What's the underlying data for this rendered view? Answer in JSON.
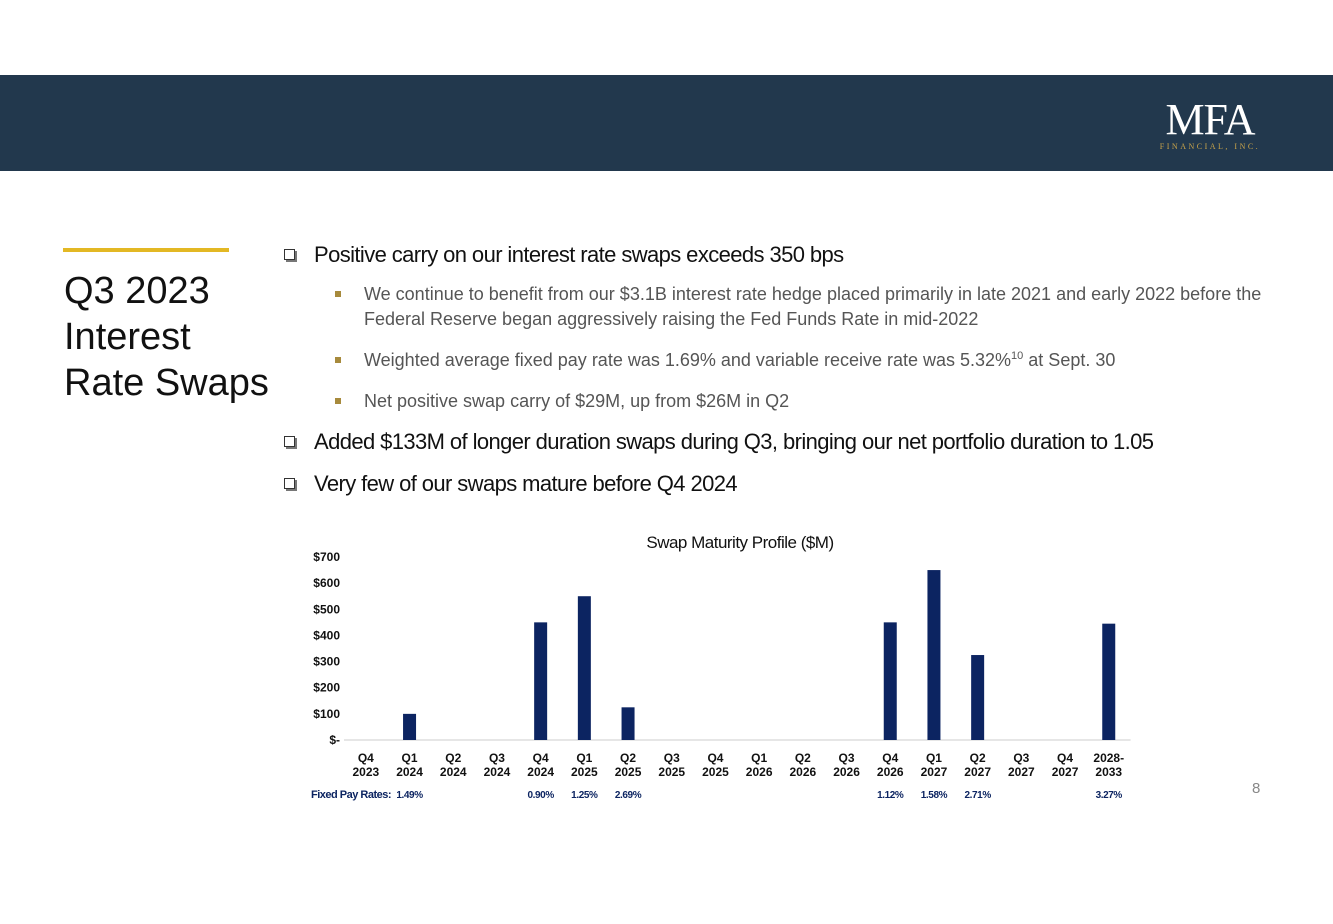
{
  "header": {
    "logo_main": "MFA",
    "logo_sub": "FINANCIAL, INC."
  },
  "title_lines": [
    "Q3 2023",
    "Interest",
    "Rate Swaps"
  ],
  "bullets": {
    "b1": "Positive carry on our interest rate swaps exceeds 350 bps",
    "sub1": "We continue to benefit from our $3.1B interest rate hedge placed primarily in late 2021 and early 2022 before the Federal Reserve began aggressively raising the Fed Funds Rate in mid-2022",
    "sub2_pre": "Weighted average fixed pay rate was 1.69% and variable receive rate was 5.32%",
    "sub2_sup": "10",
    "sub2_post": " at Sept. 30",
    "sub3": "Net positive swap carry of $29M, up from $26M in Q2",
    "b2": "Added $133M of longer duration swaps during Q3, bringing our net portfolio duration to 1.05",
    "b3": "Very few of our swaps mature before Q4 2024"
  },
  "page_number": "8",
  "colors": {
    "banner": "#22384d",
    "accent": "#e3b824",
    "bar": "#0c2461"
  },
  "chart_data": {
    "type": "bar",
    "title": "Swap Maturity Profile ($M)",
    "categories": [
      [
        "Q4",
        "2023"
      ],
      [
        "Q1",
        "2024"
      ],
      [
        "Q2",
        "2024"
      ],
      [
        "Q3",
        "2024"
      ],
      [
        "Q4",
        "2024"
      ],
      [
        "Q1",
        "2025"
      ],
      [
        "Q2",
        "2025"
      ],
      [
        "Q3",
        "2025"
      ],
      [
        "Q4",
        "2025"
      ],
      [
        "Q1",
        "2026"
      ],
      [
        "Q2",
        "2026"
      ],
      [
        "Q3",
        "2026"
      ],
      [
        "Q4",
        "2026"
      ],
      [
        "Q1",
        "2027"
      ],
      [
        "Q2",
        "2027"
      ],
      [
        "Q3",
        "2027"
      ],
      [
        "Q4",
        "2027"
      ],
      [
        "2028-",
        "2033"
      ]
    ],
    "values": [
      0,
      100,
      0,
      0,
      450,
      550,
      125,
      0,
      0,
      0,
      0,
      0,
      450,
      650,
      325,
      0,
      0,
      445
    ],
    "ylim": [
      0,
      700
    ],
    "yticks": [
      0,
      100,
      200,
      300,
      400,
      500,
      600,
      700
    ],
    "ytick_labels": [
      "$-",
      "$100",
      "$200",
      "$300",
      "$400",
      "$500",
      "$600",
      "$700"
    ],
    "fixed_pay_label": "Fixed Pay Rates:",
    "fixed_pay_rates": [
      "",
      "1.49%",
      "",
      "",
      "0.90%",
      "1.25%",
      "2.69%",
      "",
      "",
      "",
      "",
      "",
      "1.12%",
      "1.58%",
      "2.71%",
      "",
      "",
      "3.27%"
    ]
  }
}
